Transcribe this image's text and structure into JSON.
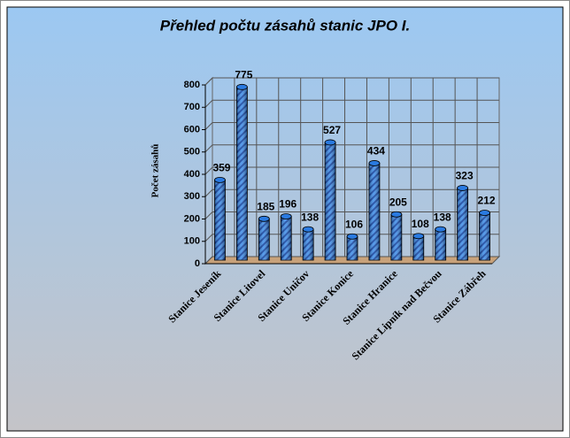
{
  "chart_data": {
    "type": "bar3d",
    "title": "Přehled počtu zásahů  stanic JPO I.",
    "y_label": "Počet zásahů",
    "categories": [
      "Stanice Jeseník",
      null,
      "Stanice Litovel",
      null,
      "Stanice Uničov",
      null,
      "Stanice Konice",
      null,
      "Stanice Hranice",
      null,
      "Stanice Lipník nad Bečvou",
      null,
      "Stanice Zábřeh"
    ],
    "values": [
      359,
      775,
      185,
      196,
      138,
      527,
      106,
      434,
      205,
      108,
      138,
      323,
      212
    ],
    "color": "#3a8ae8",
    "ylim": [
      0,
      800
    ],
    "yticks": [
      0,
      100,
      200,
      300,
      400,
      500,
      600,
      700,
      800
    ],
    "grid": true
  }
}
